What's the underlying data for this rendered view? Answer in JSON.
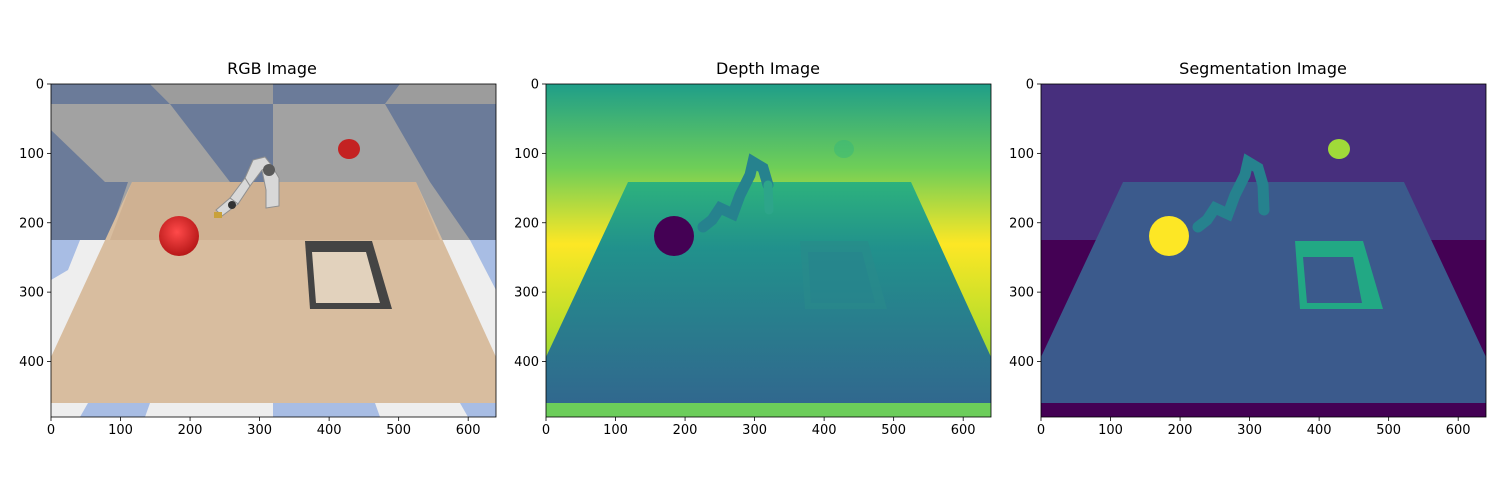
{
  "figure": {
    "background": "#ffffff",
    "panels": [
      {
        "title": "RGB Image"
      },
      {
        "title": "Depth Image"
      },
      {
        "title": "Segmentation Image"
      }
    ]
  },
  "chart_data": [
    {
      "type": "heatmap",
      "title": "RGB Image",
      "xlabel": "",
      "ylabel": "",
      "xlim": [
        0,
        640
      ],
      "ylim": [
        480,
        0
      ],
      "xticks": [
        0,
        100,
        200,
        300,
        400,
        500,
        600
      ],
      "yticks": [
        0,
        100,
        200,
        300,
        400
      ],
      "grid": false,
      "content": "simulated tabletop scene: robot arm, red ball on table, red ball in background, open rectangular tray",
      "colors": {
        "sky": "#6b7b99",
        "wall_gray": "#a0a0a0",
        "floor_blue": "#a8bde4",
        "floor_white": "#eeeeee",
        "table": "#d9bea1",
        "ball": "#d12c2c",
        "tray": "#3a3a3a"
      }
    },
    {
      "type": "heatmap",
      "title": "Depth Image",
      "xlabel": "",
      "ylabel": "",
      "xlim": [
        0,
        640
      ],
      "ylim": [
        480,
        0
      ],
      "xticks": [
        0,
        100,
        200,
        300,
        400,
        500,
        600
      ],
      "yticks": [
        0,
        100,
        200,
        300,
        400
      ],
      "grid": false,
      "colormap": "viridis",
      "colors": {
        "top": "#20a486",
        "mid": "#fde725",
        "bottom_strip": "#6ccd5a",
        "ball": "#440154",
        "table_far": "#2a9d86",
        "table_near": "#31688e"
      }
    },
    {
      "type": "heatmap",
      "title": "Segmentation Image",
      "xlabel": "",
      "ylabel": "",
      "xlim": [
        0,
        640
      ],
      "ylim": [
        480,
        0
      ],
      "xticks": [
        0,
        100,
        200,
        300,
        400,
        500,
        600
      ],
      "yticks": [
        0,
        100,
        200,
        300,
        400
      ],
      "grid": false,
      "colormap": "viridis",
      "colors": {
        "background": "#472f7d",
        "floor": "#440154",
        "table": "#3b5a8c",
        "robot": "#26828e",
        "tray": "#22a884",
        "ball_table": "#fde725",
        "ball_far": "#a0da39"
      }
    }
  ]
}
